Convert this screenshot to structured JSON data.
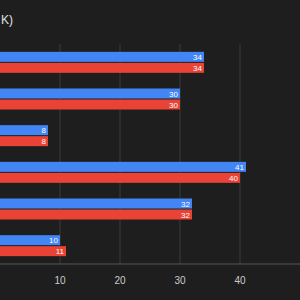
{
  "chart_data": {
    "type": "bar",
    "title": "K)",
    "orientation": "horizontal",
    "categories": [
      null,
      null,
      null,
      null,
      null,
      null
    ],
    "series": [
      {
        "color": "#4285f4",
        "values": [
          34,
          30,
          8,
          41,
          32,
          10
        ]
      },
      {
        "color": "#ea4335",
        "values": [
          34,
          30,
          8,
          40,
          32,
          11
        ]
      }
    ],
    "xlim": [
      0,
      50
    ],
    "xticks": [
      10,
      20,
      30,
      40
    ],
    "grid": true,
    "data_labels": true
  }
}
